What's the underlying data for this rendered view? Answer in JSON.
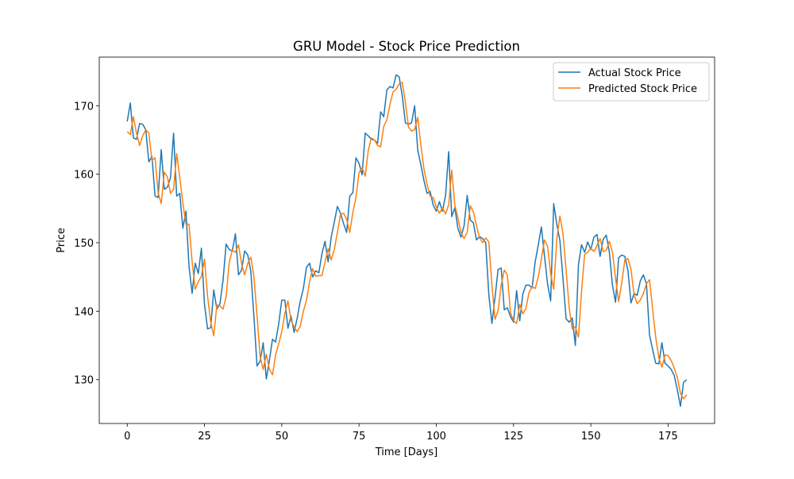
{
  "chart_data": {
    "type": "line",
    "title": "GRU Model - Stock Price Prediction",
    "xlabel": "Time [Days]",
    "ylabel": "Price",
    "x": [
      0,
      1,
      2,
      3,
      4,
      5,
      6,
      7,
      8,
      9,
      10,
      11,
      12,
      13,
      14,
      15,
      16,
      17,
      18,
      19,
      20,
      21,
      22,
      23,
      24,
      25,
      26,
      27,
      28,
      29,
      30,
      31,
      32,
      33,
      34,
      35,
      36,
      37,
      38,
      39,
      40,
      41,
      42,
      43,
      44,
      45,
      46,
      47,
      48,
      49,
      50,
      51,
      52,
      53,
      54,
      55,
      56,
      57,
      58,
      59,
      60,
      61,
      62,
      63,
      64,
      65,
      66,
      67,
      68,
      69,
      70,
      71,
      72,
      73,
      74,
      75,
      76,
      77,
      78,
      79,
      80,
      81,
      82,
      83,
      84,
      85,
      86,
      87,
      88,
      89,
      90,
      91,
      92,
      93,
      94,
      95,
      96,
      97,
      98,
      99,
      100,
      101,
      102,
      103,
      104,
      105,
      106,
      107,
      108,
      109,
      110,
      111,
      112,
      113,
      114,
      115,
      116,
      117,
      118,
      119,
      120,
      121,
      122,
      123,
      124,
      125,
      126,
      127,
      128,
      129,
      130,
      131,
      132,
      133,
      134,
      135,
      136,
      137,
      138,
      139,
      140,
      141,
      142,
      143,
      144,
      145,
      146,
      147,
      148,
      149,
      150,
      151,
      152,
      153,
      154,
      155,
      156,
      157,
      158,
      159,
      160,
      161,
      162,
      163,
      164,
      165,
      166,
      167,
      168,
      169,
      170,
      171,
      172,
      173,
      174,
      175,
      176,
      177,
      178,
      179,
      180,
      181
    ],
    "series": [
      {
        "name": "Actual Stock Price",
        "color": "#1f77b4",
        "values": [
          167.7,
          170.4,
          165.3,
          165.1,
          167.4,
          167.3,
          166.5,
          161.8,
          162.6,
          156.8,
          156.6,
          163.6,
          157.8,
          158.1,
          159.5,
          166.0,
          156.8,
          157.2,
          152.1,
          154.6,
          146.5,
          142.6,
          147.0,
          145.5,
          149.2,
          141.0,
          137.4,
          137.6,
          143.1,
          140.3,
          141.1,
          144.5,
          149.8,
          149.0,
          148.8,
          151.3,
          145.3,
          146.0,
          148.8,
          148.2,
          145.8,
          139.2,
          132.0,
          132.7,
          135.4,
          130.1,
          132.8,
          135.9,
          135.5,
          138.1,
          141.6,
          141.6,
          137.5,
          139.3,
          136.9,
          139.0,
          141.5,
          143.3,
          146.4,
          147.0,
          145.0,
          145.9,
          145.6,
          148.4,
          150.2,
          147.2,
          150.8,
          153.0,
          155.3,
          154.3,
          152.8,
          151.5,
          156.8,
          157.3,
          162.4,
          161.6,
          159.9,
          166.0,
          165.6,
          165.1,
          165.0,
          164.5,
          169.1,
          168.4,
          172.3,
          172.8,
          172.6,
          174.5,
          174.2,
          171.4,
          167.5,
          167.3,
          167.5,
          170.0,
          163.5,
          161.4,
          159.1,
          157.2,
          157.5,
          155.5,
          154.6,
          156.0,
          154.6,
          156.9,
          163.3,
          153.8,
          155.1,
          152.1,
          150.8,
          152.5,
          156.9,
          153.3,
          152.9,
          150.4,
          150.9,
          150.6,
          150.0,
          142.4,
          138.2,
          142.0,
          146.1,
          146.3,
          140.2,
          140.5,
          139.2,
          138.4,
          143.0,
          138.6,
          142.5,
          143.8,
          143.8,
          143.4,
          147.2,
          149.7,
          152.3,
          148.1,
          144.0,
          141.5,
          155.7,
          152.7,
          150.3,
          144.7,
          138.9,
          138.4,
          139.0,
          135.0,
          146.8,
          149.7,
          148.6,
          150.1,
          149.0,
          150.8,
          151.2,
          148.0,
          150.5,
          151.1,
          148.6,
          143.8,
          141.3,
          147.8,
          148.2,
          148.0,
          146.0,
          141.2,
          142.6,
          142.3,
          144.4,
          145.3,
          144.0,
          136.5,
          134.4,
          132.4,
          132.3,
          135.4,
          132.4,
          132.0,
          131.5,
          130.6,
          128.5,
          126.1,
          129.6,
          130.0
        ]
      },
      {
        "name": "Predicted Stock Price",
        "color": "#ff7f0e",
        "values": [
          166.2,
          165.8,
          168.4,
          166.0,
          164.2,
          165.6,
          166.5,
          166.0,
          162.0,
          162.4,
          157.3,
          155.7,
          160.3,
          159.6,
          157.2,
          157.8,
          163.0,
          159.5,
          155.8,
          152.7,
          152.7,
          147.2,
          143.2,
          144.3,
          145.1,
          147.6,
          142.2,
          138.4,
          136.4,
          140.9,
          140.8,
          140.3,
          142.1,
          147.1,
          148.9,
          148.6,
          149.7,
          146.9,
          145.3,
          147.0,
          147.9,
          145.0,
          139.4,
          133.4,
          131.5,
          133.7,
          131.5,
          130.7,
          133.6,
          135.2,
          137.0,
          139.7,
          141.5,
          138.7,
          137.7,
          137.0,
          137.8,
          140.0,
          141.6,
          144.3,
          146.2,
          145.1,
          145.2,
          145.2,
          147.2,
          149.1,
          147.5,
          149.0,
          151.5,
          154.1,
          154.3,
          153.4,
          151.5,
          154.4,
          156.6,
          160.2,
          161.0,
          159.7,
          163.5,
          165.3,
          165.0,
          164.2,
          164.0,
          167.0,
          167.9,
          170.2,
          172.0,
          172.4,
          173.2,
          173.4,
          170.5,
          166.9,
          166.3,
          166.5,
          168.3,
          164.3,
          160.8,
          158.6,
          156.8,
          156.6,
          155.2,
          154.3,
          155.1,
          154.2,
          155.5,
          160.6,
          155.5,
          153.6,
          151.5,
          150.6,
          151.5,
          155.4,
          154.5,
          152.5,
          150.7,
          150.0,
          150.7,
          150.1,
          143.8,
          138.8,
          140.1,
          143.8,
          146.0,
          145.3,
          139.8,
          138.6,
          138.2,
          141.0,
          139.6,
          140.4,
          142.7,
          143.6,
          143.3,
          145.0,
          147.6,
          150.4,
          149.5,
          145.5,
          143.2,
          150.6,
          153.9,
          151.3,
          146.0,
          140.5,
          137.4,
          137.7,
          136.2,
          142.9,
          148.3,
          148.6,
          149.2,
          148.7,
          149.6,
          150.6,
          148.7,
          148.9,
          150.2,
          148.6,
          144.8,
          141.4,
          144.1,
          147.5,
          147.7,
          146.1,
          142.4,
          141.1,
          141.6,
          142.6,
          144.0,
          144.6,
          140.3,
          136.2,
          133.2,
          131.8,
          133.6,
          133.5,
          132.8,
          131.7,
          130.3,
          128.0,
          127.2,
          127.8
        ]
      }
    ],
    "xlim": [
      -9.05,
      190.05
    ],
    "ylim": [
      123.6,
      177.1
    ],
    "xticks": [
      0,
      25,
      50,
      75,
      100,
      125,
      150,
      175
    ],
    "yticks": [
      130,
      140,
      150,
      160,
      170
    ],
    "legend": "upper right"
  }
}
